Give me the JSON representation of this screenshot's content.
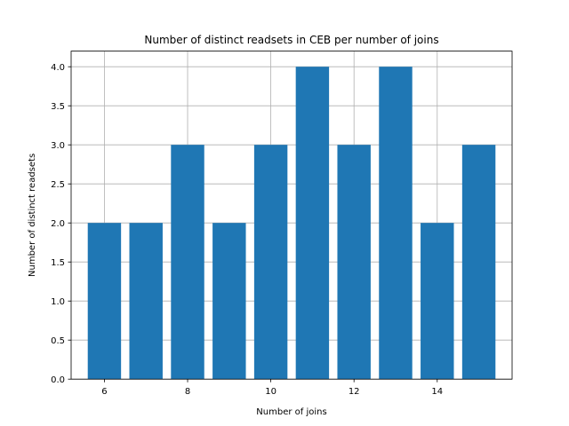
{
  "chart_data": {
    "type": "bar",
    "title": "Number of distinct readsets in CEB per number of joins",
    "xlabel": "Number of joins",
    "ylabel": "Number of distinct readsets",
    "x": [
      6,
      7,
      8,
      9,
      10,
      11,
      12,
      13,
      14,
      15
    ],
    "values": [
      2,
      2,
      3,
      2,
      3,
      4,
      3,
      4,
      2,
      3
    ],
    "bar_color": "#1f77b4",
    "bar_width": 0.8,
    "xlim": [
      5.2,
      15.8
    ],
    "ylim": [
      0,
      4.2
    ],
    "xticks": [
      6,
      8,
      10,
      12,
      14
    ],
    "xtick_labels": [
      "6",
      "8",
      "10",
      "12",
      "14"
    ],
    "yticks": [
      0,
      0.5,
      1,
      1.5,
      2,
      2.5,
      3,
      3.5,
      4
    ],
    "ytick_labels": [
      "0.0",
      "0.5",
      "1.0",
      "1.5",
      "2.0",
      "2.5",
      "3.0",
      "3.5",
      "4.0"
    ],
    "grid": true
  }
}
